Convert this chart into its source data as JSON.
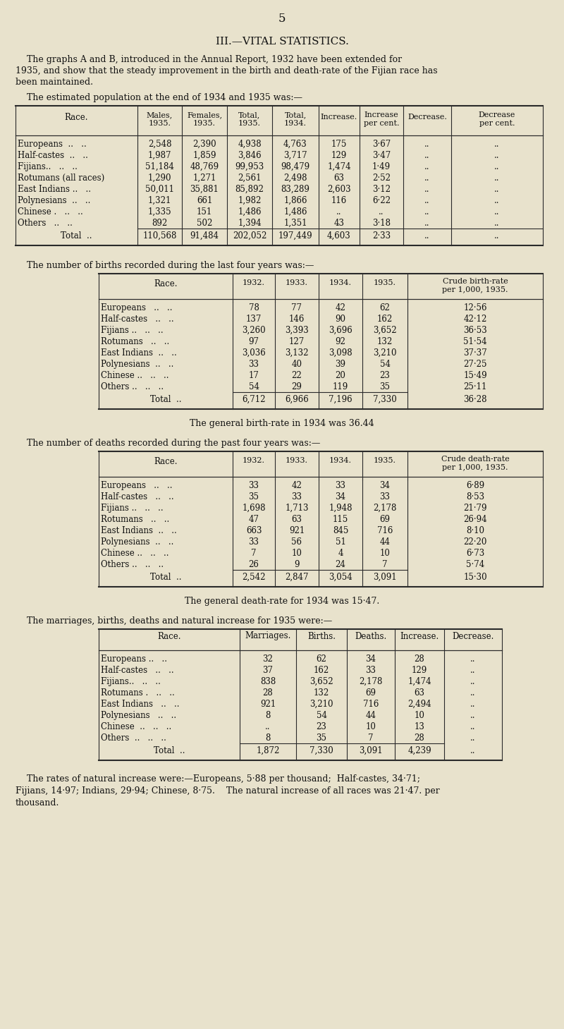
{
  "bg_color": "#e8e2cc",
  "text_color": "#1a1a1a",
  "page_number": "5",
  "title": "III.—VITAL STATISTICS.",
  "intro_text": "    The graphs A and B, introduced in the Annual Report, 1932 have been extended for\n1935, and show that the steady improvement in the birth and death-rate of the Fijian race has\nbeen maintained.",
  "pop_heading": "    The estimated population at the end of 1934 and 1935 was:—",
  "pop_col_headers": [
    "Race.",
    "Males,\n1935.",
    "Females,\n1935.",
    "Total,\n1935.",
    "Total,\n1934.",
    "Increase.",
    "Increase\nper cent.",
    "Decrease.",
    "Decrease\nper cent."
  ],
  "pop_rows": [
    [
      "Europeans  ..   ..",
      "2,548",
      "2,390",
      "4,938",
      "4,763",
      "175",
      "3·67",
      "..",
      ".."
    ],
    [
      "Half-castes  ..   ..",
      "1,987",
      "1,859",
      "3,846",
      "3,717",
      "129",
      "3·47",
      "..",
      ".."
    ],
    [
      "Fijians..   ..   ..",
      "51,184",
      "48,769",
      "99,953",
      "98,479",
      "1,474",
      "1·49",
      "..",
      ".."
    ],
    [
      "Rotumans (all races)",
      "1,290",
      "1,271",
      "2,561",
      "2,498",
      "63",
      "2·52",
      "..",
      ".."
    ],
    [
      "East Indians ..   ..",
      "50,011",
      "35,881",
      "85,892",
      "83,289",
      "2,603",
      "3·12",
      "..",
      ".."
    ],
    [
      "Polynesians  ..   ..",
      "1,321",
      "661",
      "1,982",
      "1,866",
      "116",
      "6·22",
      "..",
      ".."
    ],
    [
      "Chinese .   ..   ..",
      "1,335",
      "151",
      "1,486",
      "1,486",
      "..",
      "..",
      "..",
      ".."
    ],
    [
      "Others   ..   ..",
      "892",
      "502",
      "1,394",
      "1,351",
      "43",
      "3·18",
      "..",
      ".."
    ]
  ],
  "pop_total": [
    "Total  ..",
    "110,568",
    "91,484",
    "202,052",
    "197,449",
    "4,603",
    "2·33",
    "..",
    ".."
  ],
  "births_heading": "    The number of births recorded during the last four years was:—",
  "births_col_headers": [
    "Race.",
    "1932.",
    "1933.",
    "1934.",
    "1935.",
    "Crude birth-rate\nper 1,000, 1935."
  ],
  "births_rows": [
    [
      "Europeans   ..   ..",
      "78",
      "77",
      "42",
      "62",
      "12·56"
    ],
    [
      "Half-castes   ..   ..",
      "137",
      "146",
      "90",
      "162",
      "42·12"
    ],
    [
      "Fijians ..   ..   ..",
      "3,260",
      "3,393",
      "3,696",
      "3,652",
      "36·53"
    ],
    [
      "Rotumans   ..   ..",
      "97",
      "127",
      "92",
      "132",
      "51·54"
    ],
    [
      "East Indians  ..   ..",
      "3,036",
      "3,132",
      "3,098",
      "3,210",
      "37·37"
    ],
    [
      "Polynesians  ..   ..",
      "33",
      "40",
      "39",
      "54",
      "27·25"
    ],
    [
      "Chinese ..   ..   ..",
      "17",
      "22",
      "20",
      "23",
      "15·49"
    ],
    [
      "Others ..   ..   ..",
      "54",
      "29",
      "119",
      "35",
      "25·11"
    ]
  ],
  "births_total": [
    "Total  ..",
    "6,712",
    "6,966",
    "7,196",
    "7,330",
    "36·28"
  ],
  "births_note": "The general birth-rate in 1934 was 36.44",
  "deaths_heading": "    The number of deaths recorded during the past four years was:—",
  "deaths_col_headers": [
    "Race.",
    "1932.",
    "1933.",
    "1934.",
    "1935.",
    "Crude death-rate\nper 1,000, 1935."
  ],
  "deaths_rows": [
    [
      "Europeans   ..   ..",
      "33",
      "42",
      "33",
      "34",
      "6·89"
    ],
    [
      "Half-castes   ..   ..",
      "35",
      "33",
      "34",
      "33",
      "8·53"
    ],
    [
      "Fijians ..   ..   ..",
      "1,698",
      "1,713",
      "1,948",
      "2,178",
      "21·79"
    ],
    [
      "Rotumans   ..   ..",
      "47",
      "63",
      "115",
      "69",
      "26·94"
    ],
    [
      "East Indians  ..   ..",
      "663",
      "921",
      "845",
      "716",
      "8·10"
    ],
    [
      "Polynesians  ..   ..",
      "33",
      "56",
      "51",
      "44",
      "22·20"
    ],
    [
      "Chinese ..   ..   ..",
      "7",
      "10",
      "4",
      "10",
      "6·73"
    ],
    [
      "Others ..   ..   ..",
      "26",
      "9",
      "24",
      "7",
      "5·74"
    ]
  ],
  "deaths_total": [
    "Total  ..",
    "2,542",
    "2,847",
    "3,054",
    "3,091",
    "15·30"
  ],
  "deaths_note": "The general death-rate for 1934 was 15·47.",
  "marriages_heading": "    The marriages, births, deaths and natural increase for 1935 were:—",
  "marriages_col_headers": [
    "Race.",
    "Marriages.",
    "Births.",
    "Deaths.",
    "Increase.",
    "Decrease."
  ],
  "marriages_rows": [
    [
      "Europeans ..   ..",
      "32",
      "62",
      "34",
      "28",
      ".."
    ],
    [
      "Half-castes   ..   ..",
      "37",
      "162",
      "33",
      "129",
      ".."
    ],
    [
      "Fijians..   ..   ..",
      "838",
      "3,652",
      "2,178",
      "1,474",
      ".."
    ],
    [
      "Rotumans .   ..   ..",
      "28",
      "132",
      "69",
      "63",
      ".."
    ],
    [
      "East Indians   ..   ..",
      "921",
      "3,210",
      "716",
      "2,494",
      ".."
    ],
    [
      "Polynesians   ..   ..",
      "8",
      "54",
      "44",
      "10",
      ".."
    ],
    [
      "Chinese  ..   ..   ..",
      "..",
      "23",
      "10",
      "13",
      ".."
    ],
    [
      "Others  ..   ..   ..",
      "8",
      "35",
      "7",
      "28",
      ".."
    ]
  ],
  "marriages_total": [
    "Total  ..",
    "1,872",
    "7,330",
    "3,091",
    "4,239",
    ".."
  ],
  "closing_text": "    The rates of natural increase were:—Europeans, 5·88 per thousand;  Half-castes, 34·71;\nFijians, 14·97; Indians, 29·94; Chinese, 8·75.    The natural increase of all races was 21·47. per\nthousand."
}
